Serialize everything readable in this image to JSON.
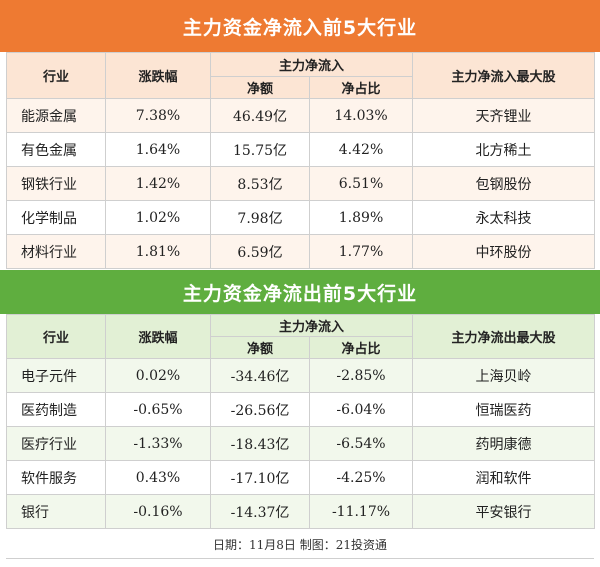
{
  "inflow": {
    "title": "主力资金净流入前5大行业",
    "headers": {
      "industry": "行业",
      "change": "涨跌幅",
      "group": "主力净流入",
      "net": "净额",
      "ratio": "净占比",
      "top": "主力净流入最大股"
    },
    "rows": [
      {
        "industry": "能源金属",
        "change": "7.38%",
        "net": "46.49亿",
        "ratio": "14.03%",
        "top": "天齐锂业"
      },
      {
        "industry": "有色金属",
        "change": "1.64%",
        "net": "15.75亿",
        "ratio": "4.42%",
        "top": "北方稀土"
      },
      {
        "industry": "钢铁行业",
        "change": "1.42%",
        "net": "8.53亿",
        "ratio": "6.51%",
        "top": "包钢股份"
      },
      {
        "industry": "化学制品",
        "change": "1.02%",
        "net": "7.98亿",
        "ratio": "1.89%",
        "top": "永太科技"
      },
      {
        "industry": "材料行业",
        "change": "1.81%",
        "net": "6.59亿",
        "ratio": "1.77%",
        "top": "中环股份"
      }
    ]
  },
  "outflow": {
    "title": "主力资金净流出前5大行业",
    "headers": {
      "industry": "行业",
      "change": "涨跌幅",
      "group": "主力净流入",
      "net": "净额",
      "ratio": "净占比",
      "top": "主力净流出最大股"
    },
    "rows": [
      {
        "industry": "电子元件",
        "change": "0.02%",
        "net": "-34.46亿",
        "ratio": "-2.85%",
        "top": "上海贝岭"
      },
      {
        "industry": "医药制造",
        "change": "-0.65%",
        "net": "-26.56亿",
        "ratio": "-6.04%",
        "top": "恒瑞医药"
      },
      {
        "industry": "医疗行业",
        "change": "-1.33%",
        "net": "-18.43亿",
        "ratio": "-6.54%",
        "top": "药明康德"
      },
      {
        "industry": "软件服务",
        "change": "0.43%",
        "net": "-17.10亿",
        "ratio": "-4.25%",
        "top": "润和软件"
      },
      {
        "industry": "银行",
        "change": "-0.16%",
        "net": "-14.37亿",
        "ratio": "-11.17%",
        "top": "平安银行"
      }
    ]
  },
  "footer": "日期：11月8日  制图：21投资通",
  "colors": {
    "inflow_banner": "#ee7a32",
    "outflow_banner": "#5fae3f"
  }
}
